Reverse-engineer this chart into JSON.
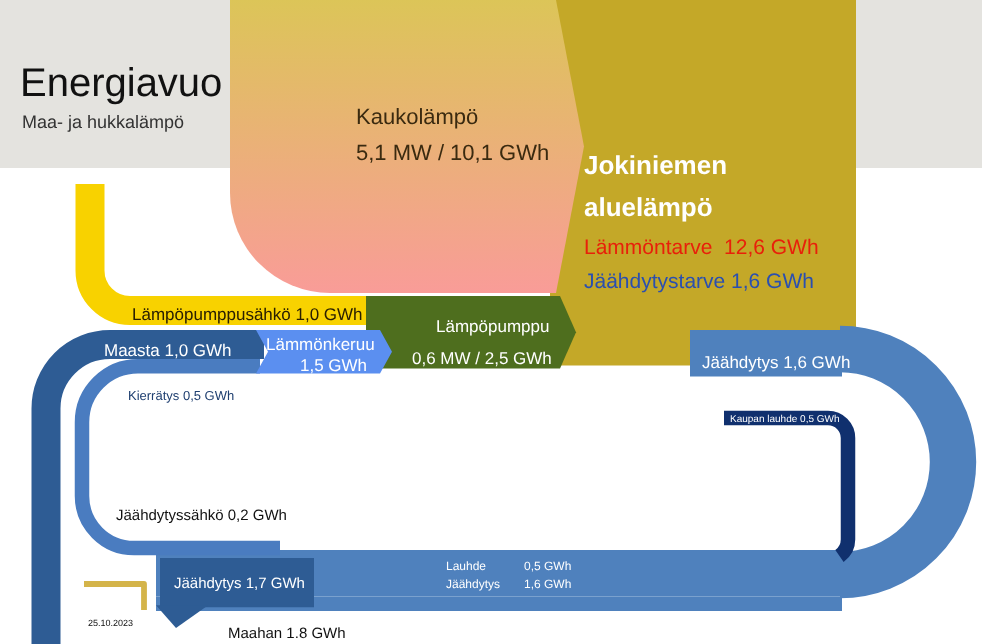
{
  "chart_data": {
    "type": "other",
    "title": "Energiavuo",
    "subtitle": "Maa- ja hukkalämpö",
    "categories": [
      "Kaukolämpö",
      "Lämpöpumppusähkö",
      "Maasta",
      "Lämmönkeruu",
      "Lämpöpumppu",
      "Kierrätys",
      "Jäähdytys",
      "Kaupan lauhde",
      "Jäähdytyssähkö",
      "Jäähdytys",
      "Maahan",
      "Lauhde",
      "Jäähdytys",
      "Lämmöntarve",
      "Jäähdytystarve"
    ],
    "values": [
      10.1,
      1.0,
      1.0,
      1.5,
      2.5,
      0.5,
      1.6,
      0.5,
      0.2,
      1.7,
      1.8,
      0.5,
      1.6,
      12.6,
      1.6
    ],
    "value_labels": [
      "5,1 MW / 10,1 GWh",
      "1,0 GWh",
      "1,0 GWh",
      "1,5 GWh",
      "0,6 MW / 2,5 GWh",
      "0,5 GWh",
      "1,6 GWh",
      "0,5 GWh",
      "0,2 GWh",
      "1,7 GWh",
      "1.8 GWh",
      "0,5 GWh",
      "1,6 GWh",
      "12,6 GWh",
      "1,6 GWh"
    ],
    "annotations": [
      "Jokiniemen",
      "aluelämpö",
      "25.10.2023"
    ]
  }
}
